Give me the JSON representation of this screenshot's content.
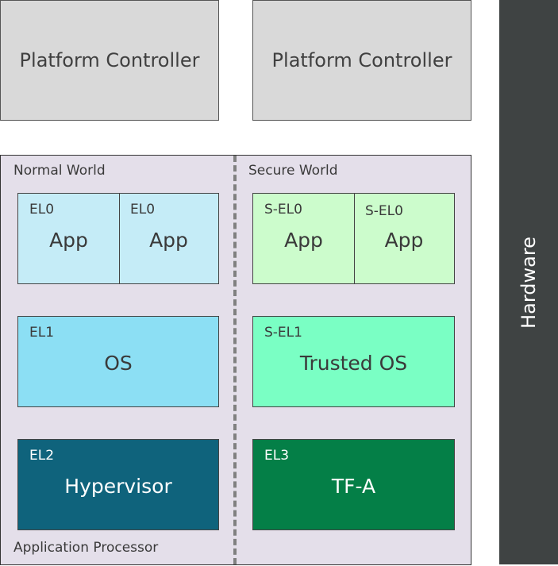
{
  "platform_controllers": [
    "Platform Controller",
    "Platform Controller"
  ],
  "hardware": "Hardware",
  "application_processor": "Application Processor",
  "normal_world": {
    "title": "Normal World",
    "el0": [
      {
        "level": "EL0",
        "name": "App"
      },
      {
        "level": "EL0",
        "name": "App"
      }
    ],
    "el1": {
      "level": "EL1",
      "name": "OS"
    },
    "el2": {
      "level": "EL2",
      "name": "Hypervisor"
    }
  },
  "secure_world": {
    "title": "Secure World",
    "el0": [
      {
        "level": "S-EL0",
        "name": "App"
      },
      {
        "level": "S-EL0",
        "name": "App"
      }
    ],
    "el1": {
      "level": "S-EL1",
      "name": "Trusted OS"
    },
    "el3": {
      "level": "EL3",
      "name": "TF-A"
    }
  },
  "colors": {
    "el0": "#c5ecf7",
    "el1": "#8cdff4",
    "el2": "#0f637c",
    "sel0": "#ccfccc",
    "sel1": "#7affc4",
    "el3": "#047f47",
    "hardware": "#3f4343",
    "processor": "#e4dfea",
    "controller": "#d9d9d9"
  }
}
